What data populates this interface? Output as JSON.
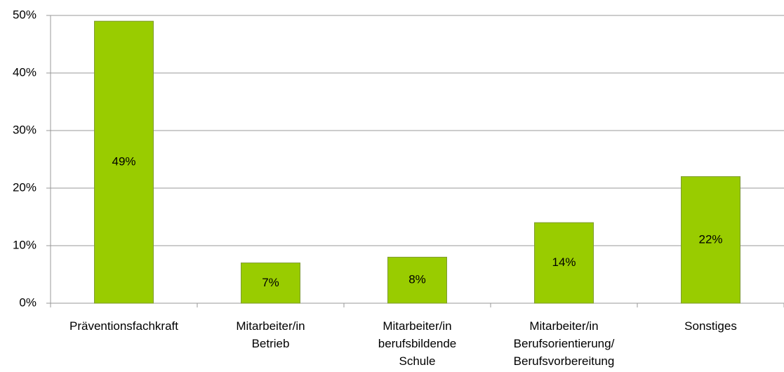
{
  "chart_data": {
    "type": "bar",
    "categories": [
      "Präventionsfachkraft",
      "Mitarbeiter/in Betrieb",
      "Mitarbeiter/in berufsbildende Schule",
      "Mitarbeiter/in Berufsorientierung/ Berufsvorbereitung",
      "Sonstiges"
    ],
    "values": [
      49,
      7,
      8,
      14,
      22
    ],
    "value_labels": [
      "49%",
      "7%",
      "8%",
      "14%",
      "22%"
    ],
    "color": "#99cc00",
    "ylim": [
      0,
      50
    ],
    "yticks": [
      {
        "value": 0,
        "label": "0%"
      },
      {
        "value": 10,
        "label": "10%"
      },
      {
        "value": 20,
        "label": "20%"
      },
      {
        "value": 30,
        "label": "30%"
      },
      {
        "value": 40,
        "label": "40%"
      },
      {
        "value": 50,
        "label": "50%"
      }
    ],
    "grid": true
  }
}
